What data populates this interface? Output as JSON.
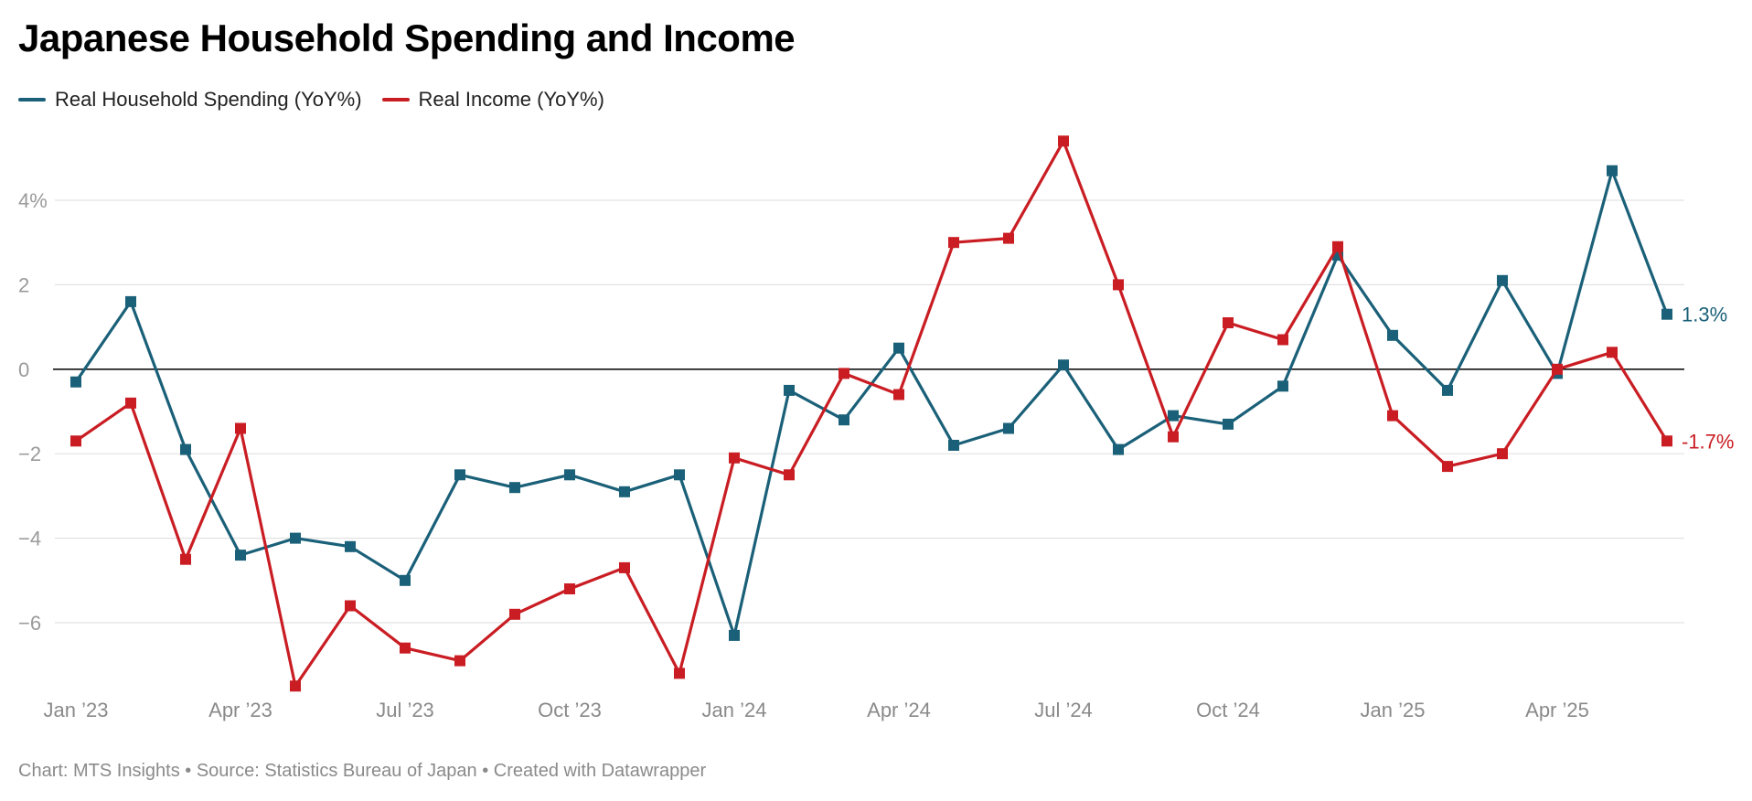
{
  "title": "Japanese Household Spending and Income",
  "footer": "Chart: MTS Insights • Source: Statistics Bureau of Japan • Created with Datawrapper",
  "chart_data": {
    "type": "line",
    "title": "Japanese Household Spending and Income",
    "xlabel": "",
    "ylabel": "",
    "ylim": [
      -7.8,
      5.6
    ],
    "grid": true,
    "legend": "top-left",
    "y_ticks": [
      {
        "value": 4,
        "label": "4%"
      },
      {
        "value": 2,
        "label": "2"
      },
      {
        "value": 0,
        "label": "0"
      },
      {
        "value": -2,
        "label": "−2"
      },
      {
        "value": -4,
        "label": "−4"
      },
      {
        "value": -6,
        "label": "−6"
      }
    ],
    "x": [
      "2023-01",
      "2023-02",
      "2023-03",
      "2023-04",
      "2023-05",
      "2023-06",
      "2023-07",
      "2023-08",
      "2023-09",
      "2023-10",
      "2023-11",
      "2023-12",
      "2024-01",
      "2024-02",
      "2024-03",
      "2024-04",
      "2024-05",
      "2024-06",
      "2024-07",
      "2024-08",
      "2024-09",
      "2024-10",
      "2024-11",
      "2024-12",
      "2025-01",
      "2025-02",
      "2025-03",
      "2025-04",
      "2025-05",
      "2025-06"
    ],
    "x_ticks": [
      {
        "at": "2023-01",
        "label": "Jan ’23"
      },
      {
        "at": "2023-04",
        "label": "Apr ’23"
      },
      {
        "at": "2023-07",
        "label": "Jul ’23"
      },
      {
        "at": "2023-10",
        "label": "Oct ’23"
      },
      {
        "at": "2024-01",
        "label": "Jan ’24"
      },
      {
        "at": "2024-04",
        "label": "Apr ’24"
      },
      {
        "at": "2024-07",
        "label": "Jul ’24"
      },
      {
        "at": "2024-10",
        "label": "Oct ’24"
      },
      {
        "at": "2025-01",
        "label": "Jan ’25"
      },
      {
        "at": "2025-04",
        "label": "Apr ’25"
      }
    ],
    "series": [
      {
        "name": "Real Household Spending (YoY%)",
        "color": "#1a6078",
        "end_label": "1.3%",
        "values": [
          -0.3,
          1.6,
          -1.9,
          -4.4,
          -4.0,
          -4.2,
          -5.0,
          -2.5,
          -2.8,
          -2.5,
          -2.9,
          -2.5,
          -6.3,
          -0.5,
          -1.2,
          0.5,
          -1.8,
          -1.4,
          0.1,
          -1.9,
          -1.1,
          -1.3,
          -0.4,
          2.7,
          0.8,
          -0.5,
          2.1,
          -0.1,
          4.7,
          1.3
        ]
      },
      {
        "name": "Real Income (YoY%)",
        "color": "#c91d23",
        "end_label": "-1.7%",
        "values": [
          -1.7,
          -0.8,
          -4.5,
          -1.4,
          -7.5,
          -5.6,
          -6.6,
          -6.9,
          -5.8,
          -5.2,
          -4.7,
          -7.2,
          -2.1,
          -2.5,
          -0.1,
          -0.6,
          3.0,
          3.1,
          5.4,
          2.0,
          -1.6,
          1.1,
          0.7,
          2.9,
          -1.1,
          -2.3,
          -2.0,
          0.0,
          0.4,
          -1.7
        ]
      }
    ]
  }
}
